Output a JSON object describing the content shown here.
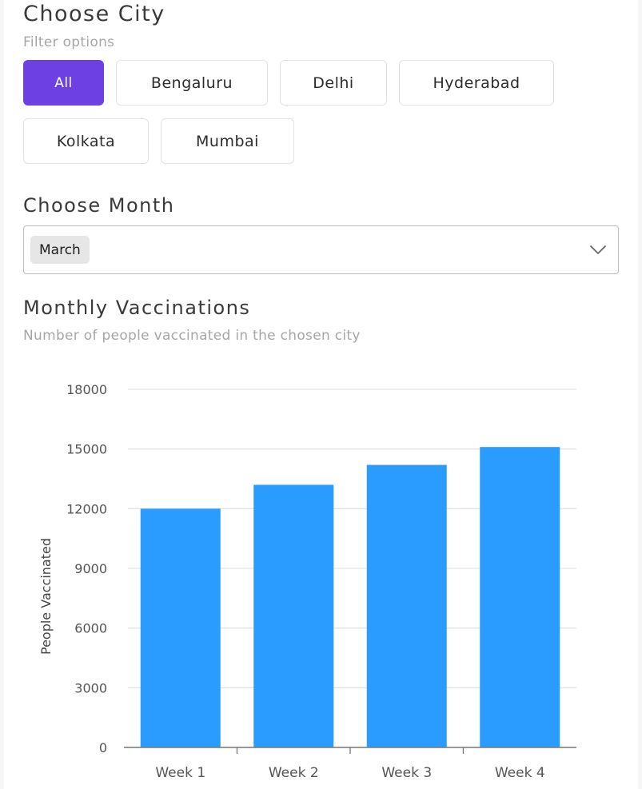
{
  "city": {
    "title": "Choose City",
    "subtitle": "Filter options",
    "options": [
      {
        "label": "All",
        "selected": true
      },
      {
        "label": "Bengaluru",
        "selected": false
      },
      {
        "label": "Delhi",
        "selected": false
      },
      {
        "label": "Hyderabad",
        "selected": false
      },
      {
        "label": "Kolkata",
        "selected": false
      },
      {
        "label": "Mumbai",
        "selected": false
      }
    ]
  },
  "month": {
    "title": "Choose Month",
    "selected": "March",
    "icon": "chevron-down-icon"
  },
  "vaccinations": {
    "title": "Monthly Vaccinations",
    "subtitle": "Number of people vaccinated in the chosen city"
  },
  "colors": {
    "accent": "#6c40e3",
    "bar": "#2a9cff"
  },
  "chart_data": {
    "type": "bar",
    "title": "",
    "categories": [
      "Week 1",
      "Week 2",
      "Week 3",
      "Week 4"
    ],
    "values": [
      12000,
      13200,
      14200,
      15100
    ],
    "xlabel": "",
    "ylabel": "People Vaccinated",
    "ylim": [
      0,
      18000
    ],
    "yticks": [
      0,
      3000,
      6000,
      9000,
      12000,
      15000,
      18000
    ],
    "grid": true,
    "legend": "none"
  }
}
